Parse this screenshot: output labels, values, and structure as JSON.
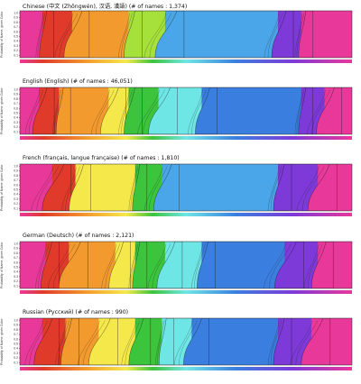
{
  "ylabel": "Probability of Name, given Color",
  "y_ticks": [
    "1.0",
    "0.9",
    "0.8",
    "0.7",
    "0.6",
    "0.5",
    "0.4",
    "0.3",
    "0.2",
    "0.1"
  ],
  "chart_data": [
    {
      "type": "area",
      "title": "Chinese (中文 (Zhōngwén), 汉语, 漢語) (# of names : 1,374)",
      "ylabel": "Probability of Name, given Color",
      "ylim": [
        0,
        1
      ],
      "x_axis": "color hue spectrum (red → violet → magenta)",
      "dominant_bands": [
        {
          "hue": "magenta",
          "from": 0.0,
          "to": 0.07
        },
        {
          "hue": "red",
          "from": 0.07,
          "to": 0.16
        },
        {
          "hue": "orange",
          "from": 0.16,
          "to": 0.33
        },
        {
          "hue": "yellow-green",
          "from": 0.33,
          "to": 0.44
        },
        {
          "hue": "cyan-blue",
          "from": 0.44,
          "to": 0.78
        },
        {
          "hue": "violet",
          "from": 0.78,
          "to": 0.85
        },
        {
          "hue": "magenta",
          "from": 0.85,
          "to": 1.0
        }
      ]
    },
    {
      "type": "area",
      "title": "English (English) (# of names : 46,051)",
      "ylabel": "Probability of Name, given Color",
      "ylim": [
        0,
        1
      ],
      "x_axis": "color hue spectrum (red → violet → magenta)",
      "dominant_bands": [
        {
          "hue": "magenta",
          "from": 0.0,
          "to": 0.06
        },
        {
          "hue": "red",
          "from": 0.06,
          "to": 0.12
        },
        {
          "hue": "orange",
          "from": 0.12,
          "to": 0.27
        },
        {
          "hue": "yellow",
          "from": 0.27,
          "to": 0.33
        },
        {
          "hue": "green",
          "from": 0.33,
          "to": 0.42
        },
        {
          "hue": "cyan",
          "from": 0.42,
          "to": 0.55
        },
        {
          "hue": "blue",
          "from": 0.55,
          "to": 0.85
        },
        {
          "hue": "violet",
          "from": 0.85,
          "to": 0.92
        },
        {
          "hue": "magenta",
          "from": 0.92,
          "to": 1.0
        }
      ]
    },
    {
      "type": "area",
      "title": "French (français, langue française) (# of names : 1,810)",
      "ylabel": "Probability of Name, given Color",
      "ylim": [
        0,
        1
      ],
      "x_axis": "color hue spectrum (red → violet → magenta)",
      "dominant_bands": [
        {
          "hue": "magenta",
          "from": 0.0,
          "to": 0.1
        },
        {
          "hue": "red",
          "from": 0.1,
          "to": 0.17
        },
        {
          "hue": "yellow",
          "from": 0.17,
          "to": 0.35
        },
        {
          "hue": "green",
          "from": 0.35,
          "to": 0.43
        },
        {
          "hue": "cyan-blue",
          "from": 0.43,
          "to": 0.78
        },
        {
          "hue": "violet",
          "from": 0.78,
          "to": 0.9
        },
        {
          "hue": "magenta",
          "from": 0.9,
          "to": 1.0
        }
      ]
    },
    {
      "type": "area",
      "title": "German (Deutsch) (# of names : 2,121)",
      "ylabel": "Probability of Name, given Color",
      "ylim": [
        0,
        1
      ],
      "x_axis": "color hue spectrum (red → violet → magenta)",
      "dominant_bands": [
        {
          "hue": "magenta",
          "from": 0.0,
          "to": 0.08
        },
        {
          "hue": "red",
          "from": 0.08,
          "to": 0.15
        },
        {
          "hue": "orange",
          "from": 0.15,
          "to": 0.29
        },
        {
          "hue": "yellow",
          "from": 0.29,
          "to": 0.35
        },
        {
          "hue": "green",
          "from": 0.35,
          "to": 0.44
        },
        {
          "hue": "cyan",
          "from": 0.44,
          "to": 0.55
        },
        {
          "hue": "blue",
          "from": 0.55,
          "to": 0.8
        },
        {
          "hue": "violet",
          "from": 0.8,
          "to": 0.9
        },
        {
          "hue": "magenta",
          "from": 0.9,
          "to": 1.0
        }
      ]
    },
    {
      "type": "area",
      "title": "Russian (Русский) (# of names : 990)",
      "ylabel": "Probability of Name, given Color",
      "ylim": [
        0,
        1
      ],
      "x_axis": "color hue spectrum (red → violet → magenta)",
      "dominant_bands": [
        {
          "hue": "magenta",
          "from": 0.0,
          "to": 0.07
        },
        {
          "hue": "red",
          "from": 0.07,
          "to": 0.14
        },
        {
          "hue": "orange",
          "from": 0.14,
          "to": 0.24
        },
        {
          "hue": "yellow",
          "from": 0.24,
          "to": 0.35
        },
        {
          "hue": "green",
          "from": 0.35,
          "to": 0.43
        },
        {
          "hue": "cyan",
          "from": 0.43,
          "to": 0.52
        },
        {
          "hue": "blue",
          "from": 0.52,
          "to": 0.78
        },
        {
          "hue": "violet",
          "from": 0.78,
          "to": 0.88
        },
        {
          "hue": "magenta",
          "from": 0.88,
          "to": 1.0
        }
      ]
    }
  ],
  "colors": {
    "magenta": "#e8389a",
    "red": "#e03a2a",
    "orange": "#f39a2e",
    "yellow": "#f5e84a",
    "yellow-green": "#a6e03a",
    "green": "#3cc43c",
    "cyan": "#6fe6e6",
    "cyan-blue": "#4aa6e8",
    "blue": "#3a7fe0",
    "violet": "#7d3ad8"
  }
}
